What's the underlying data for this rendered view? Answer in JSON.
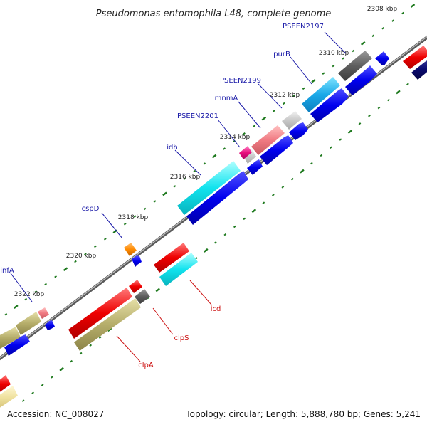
{
  "title": "Pseudomonas entomophila L48, complete genome",
  "footer": {
    "accession": "Accession: NC_008027",
    "topology": "Topology: circular; Length: 5,888,780 bp; Genes: 5,241"
  },
  "colors": {
    "backbone": "#8a8a8a",
    "tick": "#1f7a1f",
    "cds": "#0000ee",
    "label_forward": "#1a1aa8",
    "label_reverse": "#cc1111",
    "leader": "#1a1aa8",
    "leader_reverse": "#cc1111"
  },
  "ticks": [
    {
      "label": "2308 kbp"
    },
    {
      "label": "2310 kbp"
    },
    {
      "label": "2312 kbp"
    },
    {
      "label": "2314 kbp"
    },
    {
      "label": "2316 kbp"
    },
    {
      "label": "2318 kbp"
    },
    {
      "label": "2320 kbp"
    },
    {
      "label": "2322 kbp"
    }
  ],
  "labels": {
    "PSEEN2197": "PSEEN2197",
    "purB": "purB",
    "PSEEN2199": "PSEEN2199",
    "mnmA": "mnmA",
    "PSEEN2201": "PSEEN2201",
    "idh": "idh",
    "cspD": "cspD",
    "infA": "infA",
    "icd": "icd",
    "clpS": "clpS",
    "clpA": "clpA"
  }
}
